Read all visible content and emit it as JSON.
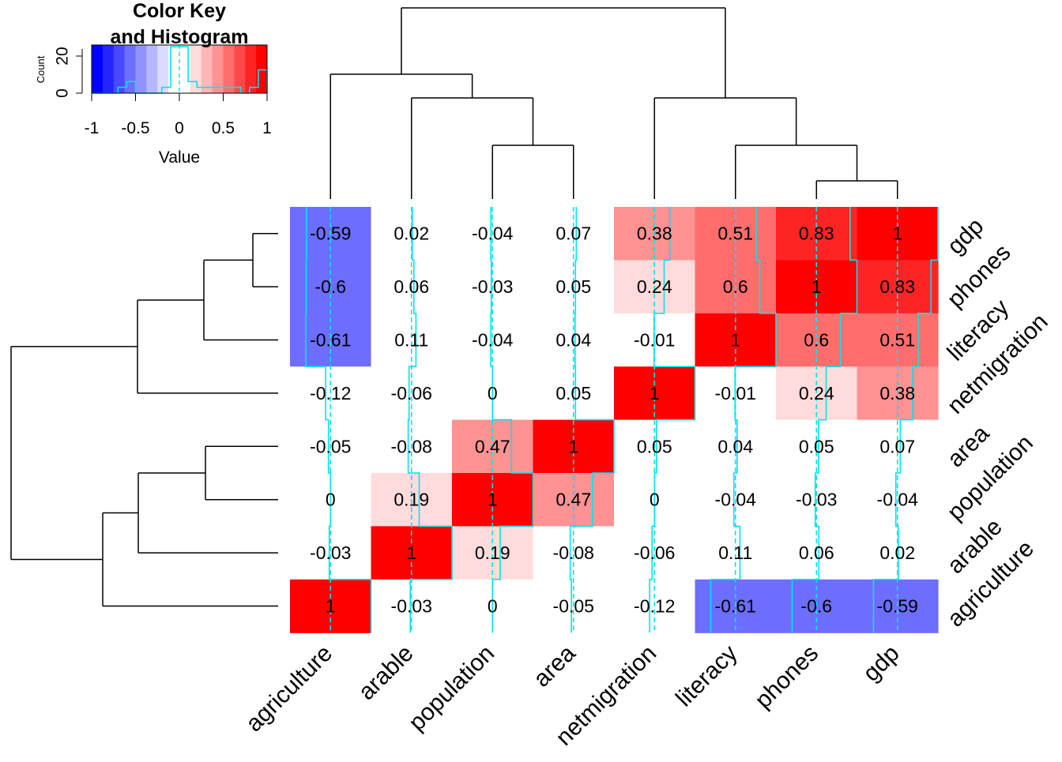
{
  "chart_data": {
    "type": "heatmap",
    "title": "",
    "color_key": {
      "title": "Color Key and Histogram",
      "title_lines": [
        "Color Key",
        "and Histogram"
      ],
      "xlabel": "Value",
      "ylabel": "Count",
      "x_ticks": [
        "-1",
        "-0.5",
        "0",
        "0.5",
        "1"
      ],
      "y_ticks": [
        "0",
        "20"
      ],
      "range": [
        -1,
        1
      ],
      "colors": {
        "low": "#0000ff",
        "mid": "#ffffff",
        "high": "#ff0000"
      },
      "histogram_color": "#00e5ee"
    },
    "columns": [
      "agriculture",
      "arable",
      "population",
      "area",
      "netmigration",
      "literacy",
      "phones",
      "gdp"
    ],
    "rows": [
      "gdp",
      "phones",
      "literacy",
      "netmigration",
      "area",
      "population",
      "arable",
      "agriculture"
    ],
    "values": [
      [
        -0.59,
        0.02,
        -0.04,
        0.07,
        0.38,
        0.51,
        0.83,
        1
      ],
      [
        -0.6,
        0.06,
        -0.03,
        0.05,
        0.24,
        0.6,
        1,
        0.83
      ],
      [
        -0.61,
        0.11,
        -0.04,
        0.04,
        -0.01,
        1,
        0.6,
        0.51
      ],
      [
        -0.12,
        -0.06,
        0,
        0.05,
        1,
        -0.01,
        0.24,
        0.38
      ],
      [
        -0.05,
        -0.08,
        0.47,
        1,
        0.05,
        0.04,
        0.05,
        0.07
      ],
      [
        0,
        0.19,
        1,
        0.47,
        0,
        -0.04,
        -0.03,
        -0.04
      ],
      [
        -0.03,
        1,
        0.19,
        -0.08,
        -0.06,
        0.11,
        0.06,
        0.02
      ],
      [
        1,
        -0.03,
        0,
        -0.05,
        -0.12,
        -0.61,
        -0.6,
        -0.59
      ]
    ],
    "labels": [
      [
        "-0.59",
        "0.02",
        "-0.04",
        "0.07",
        "0.38",
        "0.51",
        "0.83",
        "1"
      ],
      [
        "-0.6",
        "0.06",
        "-0.03",
        "0.05",
        "0.24",
        "0.6",
        "1",
        "0.83"
      ],
      [
        "-0.61",
        "0.11",
        "-0.04",
        "0.04",
        "-0.01",
        "1",
        "0.6",
        "0.51"
      ],
      [
        "-0.12",
        "-0.06",
        "0",
        "0.05",
        "1",
        "-0.01",
        "0.24",
        "0.38"
      ],
      [
        "-0.05",
        "-0.08",
        "0.47",
        "1",
        "0.05",
        "0.04",
        "0.05",
        "0.07"
      ],
      [
        "0",
        "0.19",
        "1",
        "0.47",
        "0",
        "-0.04",
        "-0.03",
        "-0.04"
      ],
      [
        "-0.03",
        "1",
        "0.19",
        "-0.08",
        "-0.06",
        "0.11",
        "0.06",
        "0.02"
      ],
      [
        "1",
        "-0.03",
        "0",
        "-0.05",
        "-0.12",
        "-0.61",
        "-0.6",
        "-0.59"
      ]
    ],
    "dendrogram": "shown on rows and columns",
    "trace_lines": true,
    "grid": false
  }
}
